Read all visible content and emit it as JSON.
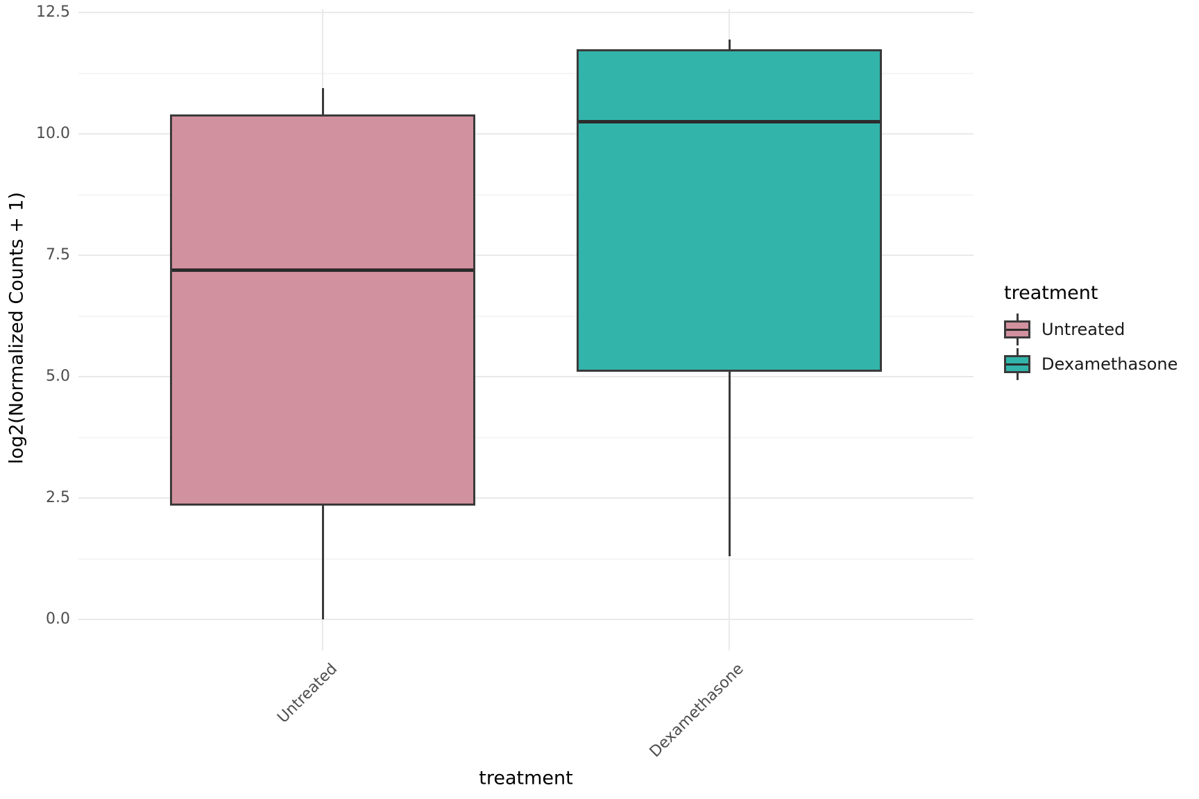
{
  "chart_data": {
    "type": "boxplot",
    "title": "",
    "xlabel": "treatment",
    "ylabel": "log2(Normalized Counts + 1)",
    "ylim": [
      0,
      12.5
    ],
    "grid": "on",
    "y_ticks": [
      {
        "value": 0.0,
        "label": "0.0"
      },
      {
        "value": 2.5,
        "label": "2.5"
      },
      {
        "value": 5.0,
        "label": "5.0"
      },
      {
        "value": 7.5,
        "label": "7.5"
      },
      {
        "value": 10.0,
        "label": "10.0"
      },
      {
        "value": 12.5,
        "label": "12.5"
      }
    ],
    "y_minor_ticks": [
      1.25,
      3.75,
      6.25,
      8.75,
      11.25
    ],
    "categories": [
      "Untreated",
      "Dexamethasone"
    ],
    "series": [
      {
        "name": "Untreated",
        "color": "#D2919F",
        "whisker_low": 0.0,
        "q1": 2.35,
        "median": 7.2,
        "q3": 10.4,
        "whisker_high": 10.95
      },
      {
        "name": "Dexamethasone",
        "color": "#32B4AA",
        "whisker_low": 1.3,
        "q1": 5.1,
        "median": 10.25,
        "q3": 11.75,
        "whisker_high": 11.95
      }
    ],
    "legend": {
      "title": "treatment",
      "position": "right",
      "entries": [
        "Untreated",
        "Dexamethasone"
      ]
    },
    "colors": {
      "box_outline": "#3A3A3A",
      "median_line": "#2B2B2B",
      "grid_major": "#E9E9E9",
      "grid_minor": "#F5F5F5",
      "tick_text": "#4D4D4D",
      "title_text": "#000000"
    }
  }
}
